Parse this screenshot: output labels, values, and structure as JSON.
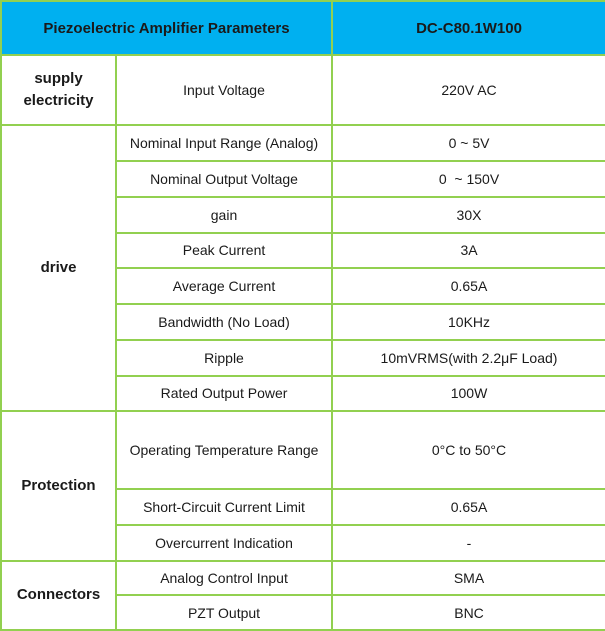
{
  "table": {
    "header": {
      "title": "Piezoelectric Amplifier Parameters",
      "model": "DC-C80.1W100"
    },
    "groups": [
      {
        "label": "supply electricity",
        "rows": [
          {
            "param": "Input Voltage",
            "value": "220V AC"
          }
        ]
      },
      {
        "label": "drive",
        "rows": [
          {
            "param": "Nominal Input Range (Analog)",
            "value": "0 ~ 5V"
          },
          {
            "param": "Nominal Output Voltage",
            "value": "0  ~ 150V"
          },
          {
            "param": "gain",
            "value": "30X"
          },
          {
            "param": "Peak Current",
            "value": "3A"
          },
          {
            "param": "Average Current",
            "value": "0.65A"
          },
          {
            "param": "Bandwidth (No Load)",
            "value": "10KHz"
          },
          {
            "param": "Ripple",
            "value": "10mVRMS(with 2.2μF Load)"
          },
          {
            "param": "Rated Output Power",
            "value": "100W"
          }
        ]
      },
      {
        "label": "Protection",
        "rows": [
          {
            "param": "Operating Temperature Range",
            "value": "0°C to 50°C"
          },
          {
            "param": "Short-Circuit Current Limit",
            "value": "0.65A"
          },
          {
            "param": "Overcurrent Indication",
            "value": "-"
          }
        ]
      },
      {
        "label": "Connectors",
        "rows": [
          {
            "param": "Analog Control Input",
            "value": "SMA"
          },
          {
            "param": "PZT Output",
            "value": "BNC"
          }
        ]
      }
    ],
    "colors": {
      "header_bg": "#00b0f0",
      "border": "#92d050",
      "text": "#1a1a1a"
    }
  }
}
